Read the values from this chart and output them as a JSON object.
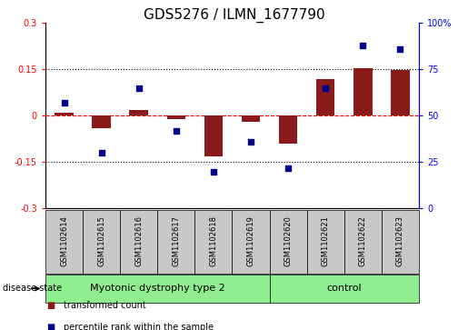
{
  "title": "GDS5276 / ILMN_1677790",
  "samples": [
    "GSM1102614",
    "GSM1102615",
    "GSM1102616",
    "GSM1102617",
    "GSM1102618",
    "GSM1102619",
    "GSM1102620",
    "GSM1102621",
    "GSM1102622",
    "GSM1102623"
  ],
  "transformed_count": [
    0.01,
    -0.04,
    0.02,
    -0.01,
    -0.13,
    -0.02,
    -0.09,
    0.12,
    0.155,
    0.148
  ],
  "percentile_rank": [
    57,
    30,
    65,
    42,
    20,
    36,
    22,
    65,
    88,
    86
  ],
  "bar_color": "#8B1A1A",
  "dot_color": "#00008B",
  "ylim_left": [
    -0.3,
    0.3
  ],
  "ylim_right": [
    0,
    100
  ],
  "yticks_left": [
    -0.3,
    -0.15,
    0.0,
    0.15,
    0.3
  ],
  "ytick_labels_left": [
    "-0.3",
    "-0.15",
    "0",
    "0.15",
    "0.3"
  ],
  "yticks_right": [
    0,
    25,
    50,
    75,
    100
  ],
  "ytick_labels_right": [
    "0",
    "25",
    "50",
    "75",
    "100%"
  ],
  "hlines": [
    0.15,
    -0.15
  ],
  "red_hline": 0.0,
  "groups": [
    {
      "label": "Myotonic dystrophy type 2",
      "start": 0,
      "end": 5
    },
    {
      "label": "control",
      "start": 6,
      "end": 9
    }
  ],
  "disease_state_label": "disease state",
  "legend_items": [
    {
      "label": "transformed count",
      "color": "#8B1A1A"
    },
    {
      "label": "percentile rank within the sample",
      "color": "#00008B"
    }
  ],
  "label_bg_color": "#C8C8C8",
  "group_color": "#90EE90",
  "title_fontsize": 11,
  "tick_fontsize": 7,
  "label_fontsize": 6,
  "group_fontsize": 8,
  "legend_fontsize": 7,
  "bar_width": 0.5
}
